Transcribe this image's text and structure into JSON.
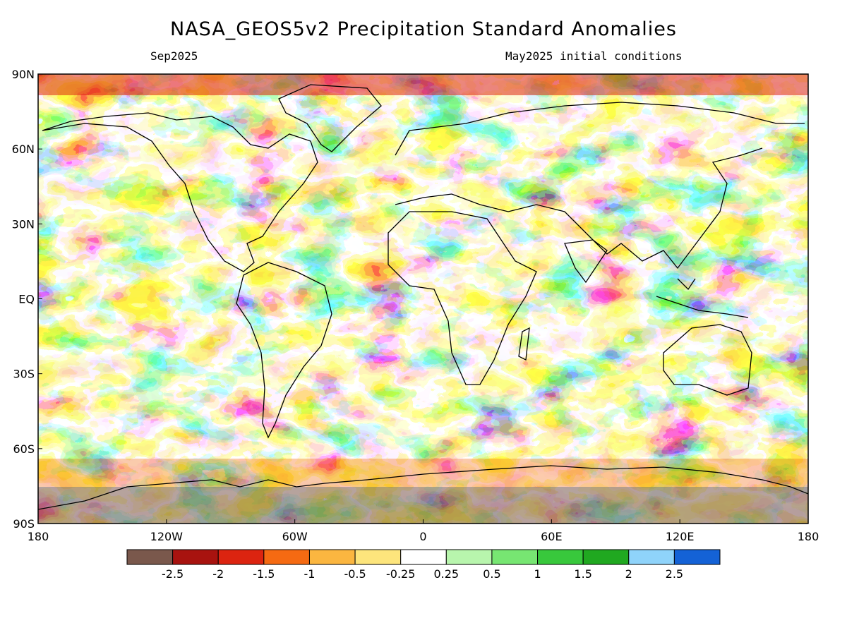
{
  "title": "NASA_GEOS5v2 Precipitation Standard Anomalies",
  "valid_month": "Sep2025",
  "init_conditions": "May2025 initial conditions",
  "map": {
    "lat_labels": [
      "90N",
      "60N",
      "30N",
      "EQ",
      "30S",
      "60S",
      "90S"
    ],
    "lon_labels": [
      "180",
      "120W",
      "60W",
      "0",
      "60E",
      "120E",
      "180"
    ],
    "lat_values": [
      90,
      60,
      30,
      0,
      -30,
      -60,
      -90
    ],
    "lon_values": [
      -180,
      -120,
      -60,
      0,
      60,
      120,
      180
    ]
  },
  "colorbar": {
    "colors": [
      "#7a584c",
      "#a8130f",
      "#dc2410",
      "#f56a12",
      "#fbb640",
      "#fde57c",
      "#ffffff",
      "#b8f5ad",
      "#77e672",
      "#38c83c",
      "#20a820",
      "#8fd3fa",
      "#1462d6"
    ],
    "labels": [
      "-2.5",
      "-2",
      "-1.5",
      "-1",
      "-0.5",
      "-0.25",
      "0.25",
      "0.5",
      "1",
      "1.5",
      "2",
      "2.5"
    ]
  }
}
